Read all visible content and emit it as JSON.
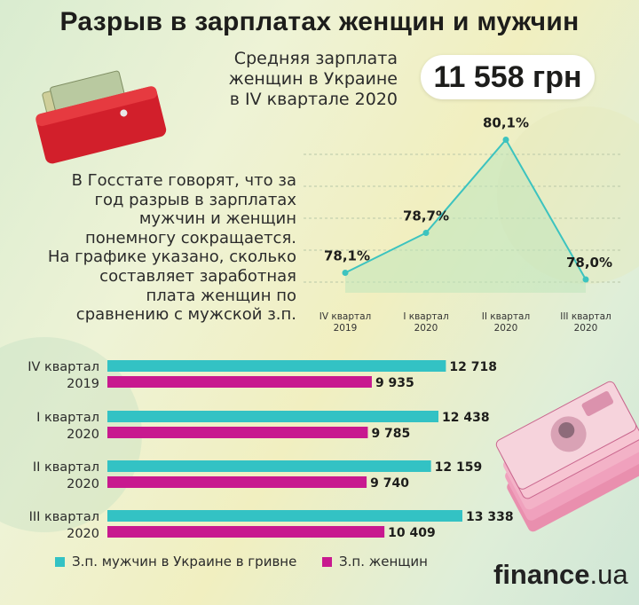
{
  "title": "Разрыв в зарплатах женщин и мужчин",
  "average": {
    "label_lines": [
      "Средняя зарплата",
      "женщин в Украине",
      "в IV квартале 2020"
    ],
    "value": "11 558 грн"
  },
  "description_lines": [
    "В Госстате говорят, что за",
    "год разрыв в зарплатах",
    "мужчин и женщин",
    "понемногу сокращается.",
    "На графике указано, сколько",
    "составляет заработная",
    "плата женщин по",
    "сравнению с мужской з.п."
  ],
  "colors": {
    "men": "#33c2c4",
    "women": "#c8198f",
    "line": "#3cc3bf",
    "area": "#bfe6bb"
  },
  "chart_data": [
    {
      "type": "line",
      "categories": [
        [
          "IV квартал",
          "2019"
        ],
        [
          "I квартал",
          "2020"
        ],
        [
          "II квартал",
          "2020"
        ],
        [
          "III квартал",
          "2020"
        ]
      ],
      "values": [
        78.1,
        78.7,
        80.1,
        78.0
      ],
      "value_labels": [
        "78,1%",
        "78,7%",
        "80,1%",
        "78,0%"
      ],
      "ylim": [
        77.8,
        80.2
      ],
      "grid": true,
      "area_fill": true
    },
    {
      "type": "bar",
      "orientation": "horizontal",
      "categories": [
        [
          "IV квартал",
          "2019"
        ],
        [
          "I квартал",
          "2020"
        ],
        [
          "II квартал",
          "2020"
        ],
        [
          "III квартал",
          "2020"
        ]
      ],
      "series": [
        {
          "name": "З.п. мужчин в Украине в гривне",
          "values": [
            12718,
            12438,
            12159,
            13338
          ],
          "labels": [
            "12 718",
            "12 438",
            "12 159",
            "13 338"
          ]
        },
        {
          "name": "З.п. женщин",
          "values": [
            9935,
            9785,
            9740,
            10409
          ],
          "labels": [
            "9 935",
            "9 785",
            "9 740",
            "10 409"
          ]
        }
      ],
      "xlim": [
        0,
        15000
      ],
      "legend": "bottom-left"
    }
  ],
  "brand": {
    "name": "finance",
    "tld": ".ua"
  }
}
